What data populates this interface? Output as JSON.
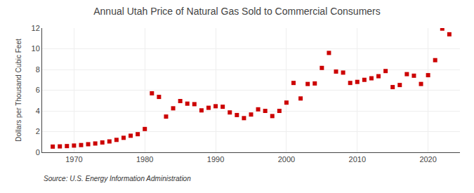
{
  "chart_data": {
    "type": "scatter",
    "title": "Annual Utah Price of Natural Gas Sold to Commercial Consumers",
    "ylabel": "Dollars per Thousand Cubic Feet",
    "annotation": "Source: U.S. Energy Information Administration",
    "x": [
      1967,
      1968,
      1969,
      1970,
      1971,
      1972,
      1973,
      1974,
      1975,
      1976,
      1977,
      1978,
      1979,
      1980,
      1981,
      1982,
      1983,
      1984,
      1985,
      1986,
      1987,
      1988,
      1989,
      1990,
      1991,
      1992,
      1993,
      1994,
      1995,
      1996,
      1997,
      1998,
      1999,
      2000,
      2001,
      2002,
      2003,
      2004,
      2005,
      2006,
      2007,
      2008,
      2009,
      2010,
      2011,
      2012,
      2013,
      2014,
      2015,
      2016,
      2017,
      2018,
      2019,
      2020,
      2021,
      2022,
      2023
    ],
    "values": [
      0.55,
      0.57,
      0.6,
      0.65,
      0.7,
      0.78,
      0.85,
      0.95,
      1.05,
      1.2,
      1.4,
      1.6,
      1.75,
      2.25,
      5.7,
      5.35,
      3.45,
      4.25,
      4.95,
      4.7,
      4.65,
      4.05,
      4.3,
      4.45,
      4.4,
      3.85,
      3.6,
      3.3,
      3.65,
      4.15,
      4.0,
      3.5,
      4.0,
      4.8,
      6.7,
      5.2,
      6.6,
      6.65,
      8.15,
      9.6,
      7.8,
      7.7,
      6.7,
      6.8,
      7.0,
      7.15,
      7.35,
      7.85,
      6.3,
      6.5,
      7.55,
      7.4,
      6.6,
      7.45,
      8.9,
      11.95,
      11.4
    ],
    "color": "#cc0000",
    "marker": "square",
    "xlim": [
      1965.5,
      2024.5
    ],
    "xticks": [
      1970,
      1980,
      1990,
      2000,
      2010,
      2020
    ],
    "ylim": [
      0,
      12
    ],
    "yticks": [
      0,
      2,
      4,
      6,
      8,
      10,
      12
    ],
    "grid": true
  }
}
